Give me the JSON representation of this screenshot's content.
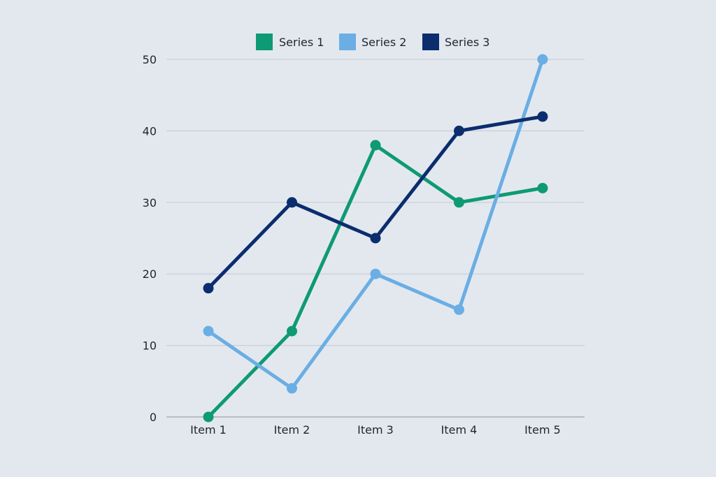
{
  "chart_data": {
    "type": "line",
    "categories": [
      "Item 1",
      "Item 2",
      "Item 3",
      "Item 4",
      "Item 5"
    ],
    "series": [
      {
        "name": "Series 1",
        "color": "#0e9a75",
        "values": [
          0,
          12,
          38,
          30,
          32
        ]
      },
      {
        "name": "Series 2",
        "color": "#6aaee4",
        "values": [
          12,
          4,
          20,
          15,
          50
        ]
      },
      {
        "name": "Series 3",
        "color": "#0b2d6e",
        "values": [
          18,
          30,
          25,
          40,
          42
        ]
      }
    ],
    "title": "",
    "xlabel": "",
    "ylabel": "",
    "ylim": [
      0,
      50
    ],
    "yticks": [
      0,
      10,
      20,
      30,
      40,
      50
    ],
    "grid": true,
    "legend_position": "top-center"
  }
}
